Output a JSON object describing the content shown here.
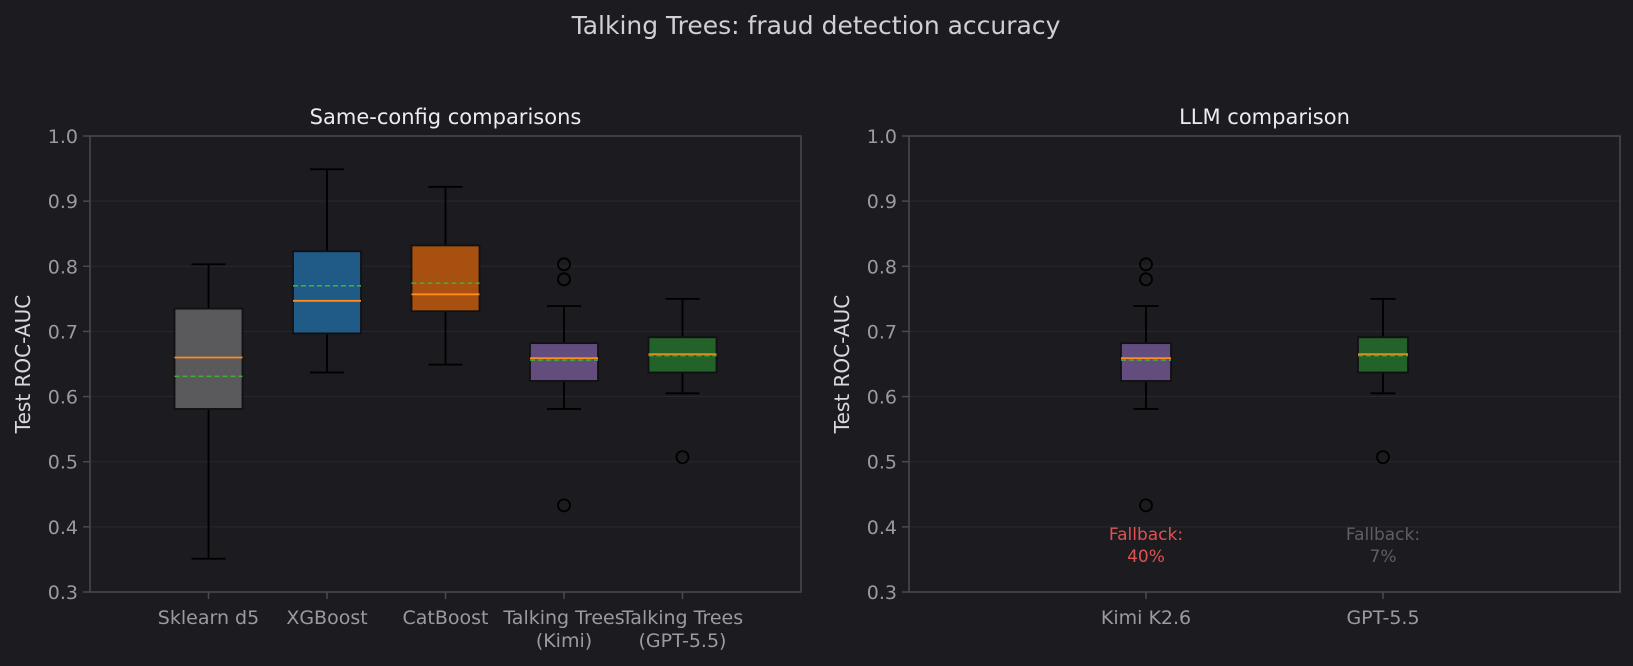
{
  "title": "Talking Trees: fraud detection accuracy",
  "colors": {
    "background": "#1b1b20",
    "axes_frame": "#4a4a50",
    "grid": "#26262c",
    "median": "#ff8c1a",
    "mean": "#3fae3a",
    "whisker": "#000000",
    "fallback_high": "#e05252",
    "fallback_low": "#5e5e64"
  },
  "chart_data": [
    {
      "type": "box",
      "title": "Same-config comparisons",
      "ylabel": "Test ROC-AUC",
      "xlabel": "",
      "ylim": [
        0.3,
        1.0
      ],
      "yticks": [
        "0.3",
        "0.4",
        "0.5",
        "0.6",
        "0.7",
        "0.8",
        "0.9",
        "1.0"
      ],
      "grid": "horizontal",
      "series": [
        {
          "label": [
            "Sklearn d5"
          ],
          "color": "#5a5a5c",
          "whisker_low": 0.351,
          "q1": 0.581,
          "median": 0.66,
          "q3": 0.735,
          "whisker_high": 0.803,
          "mean": 0.631,
          "outliers": []
        },
        {
          "label": [
            "XGBoost"
          ],
          "color": "#1f5b86",
          "whisker_low": 0.637,
          "q1": 0.697,
          "median": 0.747,
          "q3": 0.823,
          "whisker_high": 0.949,
          "mean": 0.77,
          "outliers": []
        },
        {
          "label": [
            "CatBoost"
          ],
          "color": "#a8500f",
          "whisker_low": 0.649,
          "q1": 0.731,
          "median": 0.757,
          "q3": 0.832,
          "whisker_high": 0.922,
          "mean": 0.774,
          "outliers": []
        },
        {
          "label": [
            "Talking Trees",
            "(Kimi)"
          ],
          "color": "#634d7e",
          "whisker_low": 0.581,
          "q1": 0.624,
          "median": 0.659,
          "q3": 0.682,
          "whisker_high": 0.739,
          "mean": 0.656,
          "outliers": [
            0.433,
            0.78,
            0.803
          ]
        },
        {
          "label": [
            "Talking Trees",
            "(GPT-5.5)"
          ],
          "color": "#236329",
          "whisker_low": 0.605,
          "q1": 0.637,
          "median": 0.665,
          "q3": 0.691,
          "whisker_high": 0.75,
          "mean": 0.663,
          "outliers": [
            0.507
          ]
        }
      ]
    },
    {
      "type": "box",
      "title": "LLM comparison",
      "ylabel": "Test ROC-AUC",
      "xlabel": "",
      "ylim": [
        0.3,
        1.0
      ],
      "yticks": [
        "0.3",
        "0.4",
        "0.5",
        "0.6",
        "0.7",
        "0.8",
        "0.9",
        "1.0"
      ],
      "grid": "horizontal",
      "series": [
        {
          "label": [
            "Kimi K2.6"
          ],
          "color": "#634d7e",
          "whisker_low": 0.581,
          "q1": 0.624,
          "median": 0.659,
          "q3": 0.682,
          "whisker_high": 0.739,
          "mean": 0.656,
          "outliers": [
            0.433,
            0.78,
            0.803
          ]
        },
        {
          "label": [
            "GPT-5.5"
          ],
          "color": "#236329",
          "whisker_low": 0.605,
          "q1": 0.637,
          "median": 0.665,
          "q3": 0.691,
          "whisker_high": 0.75,
          "mean": 0.663,
          "outliers": [
            0.507
          ]
        }
      ],
      "annotations": [
        {
          "series": "Kimi K2.6",
          "lines": [
            "Fallback:",
            "40%"
          ],
          "color": "#e05252",
          "fallback_pct": 40
        },
        {
          "series": "GPT-5.5",
          "lines": [
            "Fallback:",
            "7%"
          ],
          "color": "#5e5e64",
          "fallback_pct": 7
        }
      ]
    }
  ]
}
